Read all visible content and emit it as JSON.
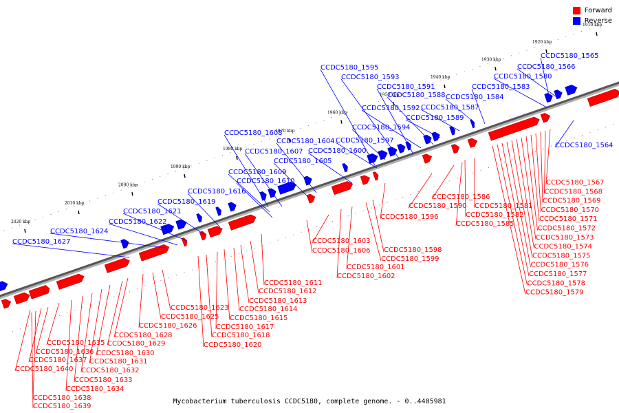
{
  "legend": {
    "forward_label": "Forward",
    "reverse_label": "Reverse",
    "forward_color": "#ff0000",
    "reverse_color": "#0000ff"
  },
  "caption": "Mycobacterium tuberculosis CCDC5180, complete genome. - 0..4405981",
  "ticks": [
    "1910 kbp",
    "1920 kbp",
    "1930 kbp",
    "1940 kbp",
    "1950 kbp",
    "1960 kbp",
    "1970 kbp",
    "1980 kbp",
    "1990 kbp",
    "2000 kbp",
    "2010 kbp",
    "2020 kbp"
  ],
  "reverse_labels": [
    "CCDC5180_1565",
    "CCDC5180_1566",
    "CCDC5180_1580",
    "CCDC5180_1583",
    "CCDC5180_1584",
    "CCDC5180_1587",
    "CCDC5180_1589",
    "CCDC5180_1588",
    "CCDC5180_1592",
    "CCDC5180_1591",
    "CCDC5180_1593",
    "CCDC5180_1595",
    "CCDC5180_1594",
    "CCDC5180_1597",
    "CCDC5180_1600",
    "CCDC5180_1604",
    "CCDC5180_1605",
    "CCDC5180_1608",
    "CCDC5180_1607",
    "CCDC5180_1609",
    "CCDC5180_1610",
    "CCDC5180_1616",
    "CCDC5180_1619",
    "CCDC5180_1621",
    "CCDC5180_1622",
    "CCDC5180_1624",
    "CCDC5180_1627",
    "CCDC5180_1564"
  ],
  "forward_right_labels": [
    "CCDC5180_1567",
    "CCDC5180_1568",
    "CCDC5180_1569",
    "CCDC5180_1570",
    "CCDC5180_1571",
    "CCDC5180_1572",
    "CCDC5180_1573",
    "CCDC5180_1574",
    "CCDC5180_1575",
    "CCDC5180_1576",
    "CCDC5180_1577",
    "CCDC5180_1578",
    "CCDC5180_1579"
  ],
  "forward_mid_labels": [
    "CCDC5180_1586",
    "CCDC5180_1590",
    "CCDC5180_1581",
    "CCDC5180_1582",
    "CCDC5180_1585",
    "CCDC5180_1596",
    "CCDC5180_1598",
    "CCDC5180_1599",
    "CCDC5180_1601",
    "CCDC5180_1602",
    "CCDC5180_1603",
    "CCDC5180_1606",
    "CCDC5180_1611",
    "CCDC5180_1612",
    "CCDC5180_1613",
    "CCDC5180_1614",
    "CCDC5180_1615",
    "CCDC5180_1617",
    "CCDC5180_1618",
    "CCDC5180_1620",
    "CCDC5180_1623",
    "CCDC5180_1625",
    "CCDC5180_1626",
    "CCDC5180_1628",
    "CCDC5180_1629",
    "CCDC5180_1630",
    "CCDC5180_1631",
    "CCDC5180_1632",
    "CCDC5180_1633",
    "CCDC5180_1634",
    "CCDC5180_1635",
    "CCDC5180_1636",
    "CCDC5180_1637",
    "CCDC5180_1640",
    "CCDC5180_1638",
    "CCDC5180_1639"
  ]
}
